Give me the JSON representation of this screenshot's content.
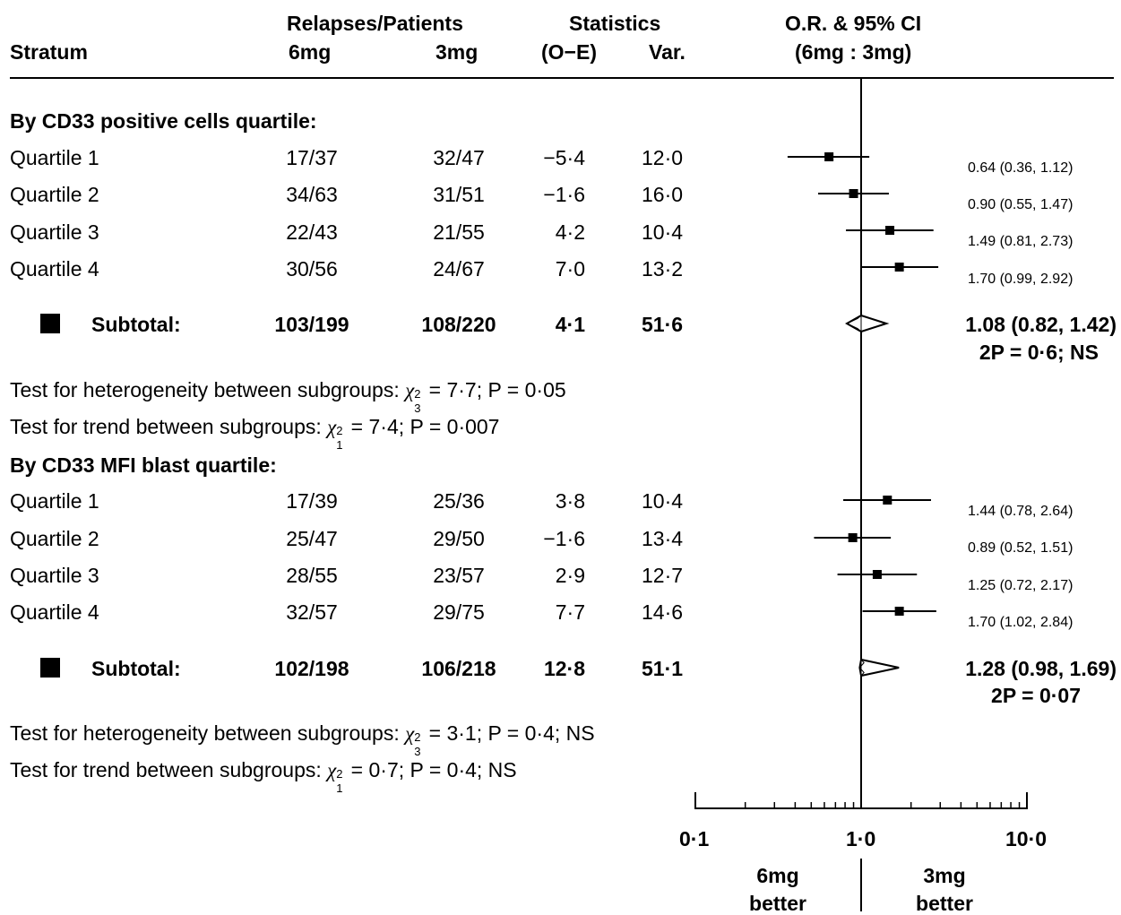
{
  "header": {
    "stratum": "Stratum",
    "relapses_patients": "Relapses/Patients",
    "col_6mg": "6mg",
    "col_3mg": "3mg",
    "statistics": "Statistics",
    "o_e": "(O−E)",
    "var": "Var.",
    "or_ci": "O.R. & 95% CI",
    "or_ci_sub": "(6mg : 3mg)"
  },
  "groups": [
    {
      "title": "By CD33 positive cells quartile:",
      "rows": [
        {
          "label": "Quartile 1",
          "r6": "17/37",
          "r3": "32/47",
          "oe": "−5·4",
          "var": "12·0",
          "ci_text": "0.64 (0.36, 1.12)"
        },
        {
          "label": "Quartile 2",
          "r6": "34/63",
          "r3": "31/51",
          "oe": "−1·6",
          "var": "16·0",
          "ci_text": "0.90 (0.55, 1.47)"
        },
        {
          "label": "Quartile 3",
          "r6": "22/43",
          "r3": "21/55",
          "oe": "4·2",
          "var": "10·4",
          "ci_text": "1.49 (0.81, 2.73)"
        },
        {
          "label": "Quartile 4",
          "r6": "30/56",
          "r3": "24/67",
          "oe": "7·0",
          "var": "13·2",
          "ci_text": "1.70 (0.99, 2.92)"
        }
      ],
      "subtotal": {
        "label": "Subtotal:",
        "r6": "103/199",
        "r3": "108/220",
        "oe": "4·1",
        "var": "51·6",
        "ci_text": "1.08 (0.82, 1.42)",
        "p_text": "2P = 0·6; NS"
      },
      "het_test": {
        "prefix": "Test for heterogeneity between subgroups: ",
        "sup": "2",
        "sub": "3",
        "suffix": " = 7·7; P = 0·05"
      },
      "trend_test": {
        "prefix": "Test for trend between subgroups: ",
        "sup": "2",
        "sub": "1",
        "suffix": " = 7·4; P = 0·007"
      }
    },
    {
      "title": "By CD33 MFI blast quartile:",
      "rows": [
        {
          "label": "Quartile 1",
          "r6": "17/39",
          "r3": "25/36",
          "oe": "3·8",
          "var": "10·4",
          "ci_text": "1.44 (0.78, 2.64)"
        },
        {
          "label": "Quartile 2",
          "r6": "25/47",
          "r3": "29/50",
          "oe": "−1·6",
          "var": "13·4",
          "ci_text": "0.89 (0.52, 1.51)"
        },
        {
          "label": "Quartile 3",
          "r6": "28/55",
          "r3": "23/57",
          "oe": "2·9",
          "var": "12·7",
          "ci_text": "1.25 (0.72, 2.17)"
        },
        {
          "label": "Quartile 4",
          "r6": "32/57",
          "r3": "29/75",
          "oe": "7·7",
          "var": "14·6",
          "ci_text": "1.70 (1.02, 2.84)"
        }
      ],
      "subtotal": {
        "label": "Subtotal:",
        "r6": "102/198",
        "r3": "106/218",
        "oe": "12·8",
        "var": "51·1",
        "ci_text": "1.28 (0.98, 1.69)",
        "p_text": "2P = 0·07"
      },
      "het_test": {
        "prefix": "Test for heterogeneity between subgroups: ",
        "sup": "2",
        "sub": "3",
        "suffix": " = 3·1; P = 0·4; NS"
      },
      "trend_test": {
        "prefix": "Test for trend between subgroups: ",
        "sup": "2",
        "sub": "1",
        "suffix": " = 0·7; P = 0·4; NS"
      }
    }
  ],
  "chi_symbol": "χ",
  "axis": {
    "tick_labels": [
      "0·1",
      "1·0",
      "10·0"
    ],
    "left_label_1": "6mg",
    "left_label_2": "better",
    "right_label_1": "3mg",
    "right_label_2": "better"
  },
  "chart_data": {
    "type": "forest",
    "scale": "log",
    "xlim": [
      0.1,
      10.0
    ],
    "reference_line": 1.0,
    "series": [
      {
        "name": "By CD33 positive cells quartile:",
        "points": [
          {
            "label": "Quartile 1",
            "or": 0.64,
            "lo": 0.36,
            "hi": 1.12
          },
          {
            "label": "Quartile 2",
            "or": 0.9,
            "lo": 0.55,
            "hi": 1.47
          },
          {
            "label": "Quartile 3",
            "or": 1.49,
            "lo": 0.81,
            "hi": 2.73
          },
          {
            "label": "Quartile 4",
            "or": 1.7,
            "lo": 0.99,
            "hi": 2.92
          },
          {
            "label": "Subtotal:",
            "or": 1.08,
            "lo": 0.82,
            "hi": 1.42,
            "diamond": true
          }
        ]
      },
      {
        "name": "By CD33 MFI blast quartile:",
        "points": [
          {
            "label": "Quartile 1",
            "or": 1.44,
            "lo": 0.78,
            "hi": 2.64
          },
          {
            "label": "Quartile 2",
            "or": 0.89,
            "lo": 0.52,
            "hi": 1.51
          },
          {
            "label": "Quartile 3",
            "or": 1.25,
            "lo": 0.72,
            "hi": 2.17
          },
          {
            "label": "Quartile 4",
            "or": 1.7,
            "lo": 1.02,
            "hi": 2.84
          },
          {
            "label": "Subtotal:",
            "or": 1.28,
            "lo": 0.98,
            "hi": 1.69,
            "diamond": true
          }
        ]
      }
    ]
  }
}
